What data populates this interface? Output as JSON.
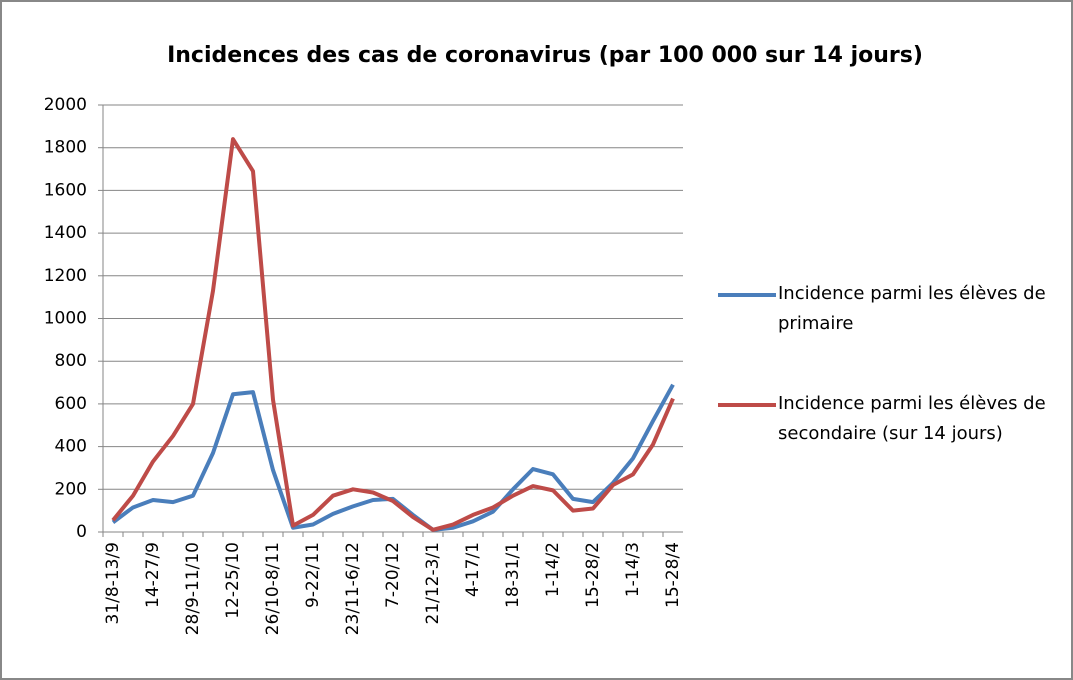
{
  "chart_data": {
    "type": "line",
    "title": "Incidences des cas de coronavirus (par 100 000 sur 14 jours)",
    "categories": [
      "31/8-13/9",
      null,
      "14-27/9",
      null,
      "28/9-11/10",
      null,
      "12-25/10",
      null,
      "26/10-8/11",
      null,
      "9-22/11",
      null,
      "23/11-6/12",
      null,
      "7-20/12",
      null,
      "21/12-3/1",
      null,
      "4-17/1",
      null,
      "18-31/1",
      null,
      "1-14/2",
      null,
      "15-28/2",
      null,
      "1-14/3",
      null,
      "15-28/4"
    ],
    "series": [
      {
        "name": "Incidence parmi les élèves de primaire",
        "color": "#4a7ebb",
        "values": [
          45,
          115,
          150,
          140,
          170,
          370,
          645,
          655,
          290,
          20,
          35,
          85,
          120,
          150,
          155,
          80,
          10,
          20,
          50,
          95,
          200,
          295,
          270,
          155,
          140,
          230,
          345,
          520,
          690
        ]
      },
      {
        "name": "Incidence parmi les élèves de secondaire (sur 14 jours)",
        "color": "#be4b48",
        "values": [
          55,
          170,
          330,
          450,
          600,
          1130,
          1840,
          1690,
          620,
          30,
          80,
          170,
          200,
          185,
          145,
          70,
          10,
          35,
          80,
          115,
          170,
          215,
          195,
          100,
          110,
          220,
          270,
          410,
          625
        ]
      }
    ],
    "ylim": [
      0,
      2000
    ],
    "yticks": [
      0,
      200,
      400,
      600,
      800,
      1000,
      1200,
      1400,
      1600,
      1800,
      2000
    ],
    "grid": true,
    "legend": "right"
  }
}
